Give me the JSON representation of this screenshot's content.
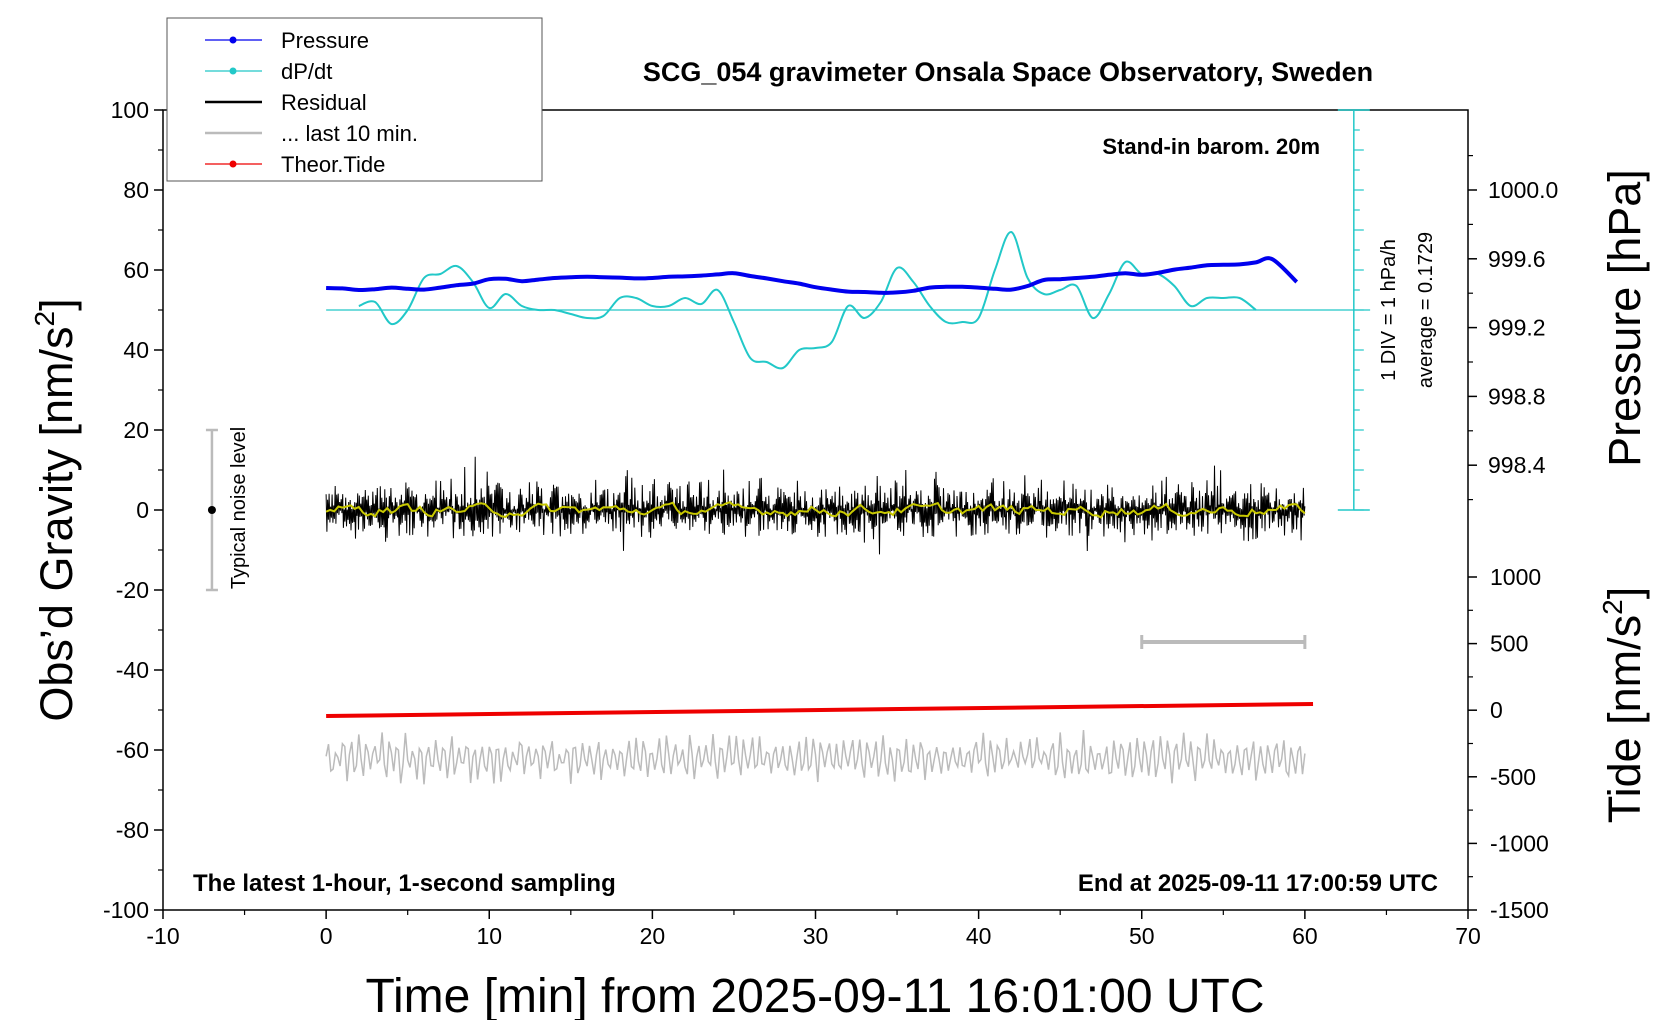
{
  "chart_data": {
    "type": "line",
    "title": "SCG_054 gravimeter Onsala Space Observatory, Sweden",
    "xlabel": "Time [min] from 2025-09-11 16:01:00 UTC",
    "ylabel_left_main": "Obs’d Gravity [nm/s",
    "ylabel_left_sup": "2",
    "ylabel_left_end": "]",
    "ylabel_right_pressure": "Pressure [hPa]",
    "ylabel_right_tide_main": "Tide [nm/s",
    "ylabel_right_tide_sup": "2",
    "ylabel_right_tide_end": "]",
    "xlim": [
      -10,
      70
    ],
    "ylim": [
      -100,
      100
    ],
    "x_ticks": [
      "-10",
      "0",
      "10",
      "20",
      "30",
      "40",
      "50",
      "60",
      "70"
    ],
    "y_ticks": [
      "100",
      "80",
      "60",
      "40",
      "20",
      "0",
      "-20",
      "-40",
      "-60",
      "-80",
      "-100"
    ],
    "pressure_axis": {
      "ticks": [
        "1000.0",
        "999.6",
        "999.2",
        "998.8",
        "998.4"
      ],
      "values": [
        1000.0,
        999.6,
        999.2,
        998.8,
        998.4
      ]
    },
    "tide_axis": {
      "ticks": [
        "1000",
        "500",
        "0",
        "-500",
        "-1000",
        "-1500"
      ],
      "values": [
        1000,
        500,
        0,
        -500,
        -1000,
        -1500
      ],
      "range": [
        -1500,
        1000
      ]
    },
    "legend": {
      "placement": "top-left",
      "entries": [
        {
          "label": "Pressure",
          "color": "#0000ee",
          "marker": true
        },
        {
          "label": "dP/dt",
          "color": "#22c8c8",
          "marker": true
        },
        {
          "label": "Residual",
          "color": "#000000",
          "marker": false
        },
        {
          "label": "... last 10 min.",
          "color": "#bbbbbb",
          "marker": false
        },
        {
          "label": "Theor.Tide",
          "color": "#ee0000",
          "marker": true
        }
      ]
    },
    "annotations": {
      "stand_in": "Stand-in barom. 20m",
      "div_label": "1 DIV = 1 hPa/h",
      "average": "average = 0.1729",
      "noise_label": "Typical noise level",
      "bottom_left": "The latest 1-hour, 1-second sampling",
      "bottom_right": "End at 2025-09-11 17:00:59 UTC"
    },
    "noise_bar": {
      "x": -7,
      "center": 0,
      "range": [
        -20,
        20
      ]
    },
    "last10_bar": {
      "x": [
        50,
        60
      ],
      "y": -33
    },
    "dpdt_baseline": 50,
    "series": [
      {
        "name": "Pressure",
        "color": "#0000ee",
        "x": [
          0,
          1,
          2,
          3,
          4,
          5,
          6,
          7,
          8,
          9,
          10,
          11,
          12,
          13,
          14,
          15,
          16,
          17,
          18,
          19,
          20,
          21,
          22,
          23,
          24,
          25,
          26,
          27,
          28,
          29,
          30,
          31,
          32,
          33,
          34,
          35,
          36,
          37,
          38,
          39,
          40,
          41,
          42,
          43,
          44,
          45,
          46,
          47,
          48,
          49,
          50,
          51,
          52,
          53,
          54,
          55,
          56,
          57,
          58,
          59.5
        ],
        "values": [
          55.5,
          55.4,
          55.0,
          55.2,
          55.6,
          55.3,
          55.1,
          55.6,
          56.2,
          56.6,
          57.7,
          57.8,
          57.2,
          57.6,
          58.0,
          58.2,
          58.3,
          58.2,
          58.1,
          57.9,
          58.0,
          58.3,
          58.4,
          58.6,
          58.9,
          59.2,
          58.5,
          57.9,
          57.2,
          56.6,
          55.7,
          55.1,
          54.6,
          54.5,
          54.3,
          54.4,
          54.8,
          55.6,
          55.8,
          55.8,
          55.6,
          55.3,
          55.1,
          56.0,
          57.5,
          57.7,
          58.0,
          58.3,
          58.8,
          59.2,
          58.8,
          59.3,
          60.1,
          60.6,
          61.2,
          61.3,
          61.4,
          61.9,
          62.7,
          57.0
        ]
      },
      {
        "name": "dP/dt",
        "color": "#22c8c8",
        "x": [
          2,
          3,
          4,
          5,
          6,
          7,
          8,
          9,
          10,
          11,
          12,
          13,
          14,
          15,
          16,
          17,
          18,
          19,
          20,
          21,
          22,
          23,
          24,
          25,
          26,
          27,
          28,
          29,
          30,
          31,
          32,
          33,
          34,
          35,
          36,
          37,
          38,
          39,
          40,
          41,
          42,
          43,
          44,
          45,
          46,
          47,
          48,
          49,
          50,
          51,
          52,
          53,
          54,
          55,
          56,
          57
        ],
        "values": [
          51,
          52,
          46.5,
          50,
          58,
          59,
          61,
          57,
          50.5,
          54,
          51,
          50,
          50,
          49,
          48,
          48.5,
          53,
          53,
          51,
          51,
          53,
          51.5,
          55,
          47,
          38,
          37,
          35.5,
          40,
          40.5,
          42,
          51,
          48,
          52,
          60.5,
          57,
          51,
          47,
          47,
          48,
          60,
          69.5,
          58,
          54,
          55,
          56,
          48,
          54,
          62,
          59,
          59,
          56,
          51,
          53,
          53,
          53,
          50
        ]
      },
      {
        "name": "Residual",
        "color": "#000000",
        "x_range": [
          0,
          60
        ],
        "center": 0,
        "amplitude": 4.5
      },
      {
        "name": "... last 10 min.",
        "color": "#bbbbbb",
        "x_range": [
          0,
          60
        ],
        "center": -62,
        "amplitude": 4.5
      },
      {
        "name": "Theor.Tide",
        "color": "#ee0000",
        "x": [
          0,
          60.5
        ],
        "values": [
          -51.5,
          -48.5
        ]
      }
    ]
  }
}
